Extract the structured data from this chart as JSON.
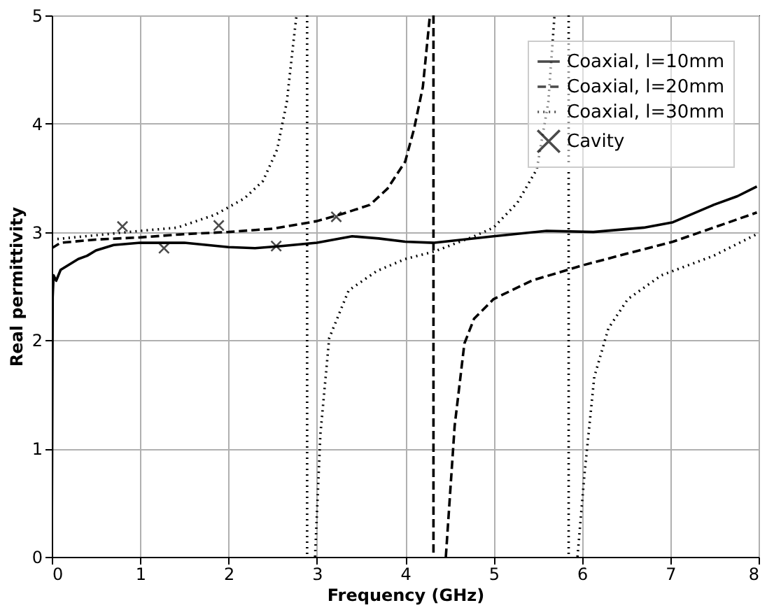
{
  "chart_data": {
    "type": "line",
    "xlabel": "Frequency (GHz)",
    "ylabel": "Real permittivity",
    "xlim": [
      0,
      8
    ],
    "ylim": [
      0,
      5
    ],
    "xticks": [
      0,
      1,
      2,
      3,
      4,
      5,
      6,
      7,
      8
    ],
    "yticks": [
      0,
      1,
      2,
      3,
      4,
      5
    ],
    "grid": true,
    "legend": "top right",
    "series": [
      {
        "name": "Coaxial, l=10mm",
        "color": "#000000",
        "line_style": "solid",
        "x": [
          0,
          0.01,
          0.02,
          0.05,
          0.1,
          0.2,
          0.3,
          0.4,
          0.5,
          0.7,
          1,
          1.5,
          2,
          2.3,
          2.6,
          3,
          3.4,
          3.7,
          4,
          4.33,
          5,
          5.6,
          6.13,
          6.7,
          7.03,
          7.49,
          7.76,
          7.98
        ],
        "values": [
          0,
          2.4,
          2.6,
          2.55,
          2.65,
          2.7,
          2.75,
          2.78,
          2.83,
          2.88,
          2.9,
          2.9,
          2.86,
          2.85,
          2.87,
          2.9,
          2.96,
          2.94,
          2.91,
          2.9,
          2.96,
          3.01,
          3.0,
          3.04,
          3.09,
          3.25,
          3.33,
          3.42
        ]
      },
      {
        "name": "Coaxial, l=20mm",
        "color": "#000000",
        "line_style": "dashed",
        "x": [
          0,
          0.1,
          0.5,
          1,
          1.5,
          2,
          2.5,
          3,
          3.3,
          3.6,
          3.8,
          4.0,
          4.1,
          4.2,
          4.28,
          4.3,
          4.32,
          4.32,
          4.4,
          4.46,
          4.56,
          4.67,
          4.78,
          5,
          5.43,
          6,
          6.51,
          7.03,
          7.49,
          7.98
        ],
        "values": [
          2.85,
          2.9,
          2.93,
          2.95,
          2.98,
          3.0,
          3.03,
          3.1,
          3.17,
          3.25,
          3.4,
          3.65,
          3.95,
          4.34,
          5,
          null,
          5,
          0,
          null,
          0,
          1.21,
          1.97,
          2.2,
          2.38,
          2.55,
          2.69,
          2.8,
          2.91,
          3.04,
          3.18
        ]
      },
      {
        "name": "Coaxial, l=30mm",
        "color": "#000000",
        "line_style": "dotted",
        "x": [
          0,
          1,
          1.42,
          1.85,
          2.18,
          2.39,
          2.55,
          2.66,
          2.74,
          2.77,
          2.8,
          2.89,
          2.89,
          2.95,
          2.98,
          3.04,
          3.14,
          3.36,
          3.68,
          4.0,
          4.33,
          4.78,
          5,
          5.27,
          5.49,
          5.62,
          5.69,
          5.75,
          5.85,
          5.85,
          5.9,
          5.95,
          6.03,
          6.14,
          6.3,
          6.52,
          6.9,
          7.49,
          7.98
        ],
        "values": [
          2.93,
          3.01,
          3.04,
          3.16,
          3.31,
          3.47,
          3.76,
          4.2,
          4.79,
          5,
          null,
          5,
          0,
          null,
          0,
          1.13,
          2.02,
          2.46,
          2.64,
          2.75,
          2.82,
          2.96,
          3.04,
          3.27,
          3.58,
          4.2,
          5,
          null,
          5,
          0,
          null,
          0,
          0.77,
          1.66,
          2.11,
          2.38,
          2.6,
          2.78,
          2.98
        ]
      },
      {
        "name": "Cavity",
        "color": "#000000",
        "type": "scatter",
        "marker": "cross",
        "x": [
          0.8,
          1.27,
          1.89,
          2.54,
          3.22
        ],
        "values": [
          3.05,
          2.85,
          3.06,
          2.87,
          3.14
        ]
      }
    ]
  }
}
